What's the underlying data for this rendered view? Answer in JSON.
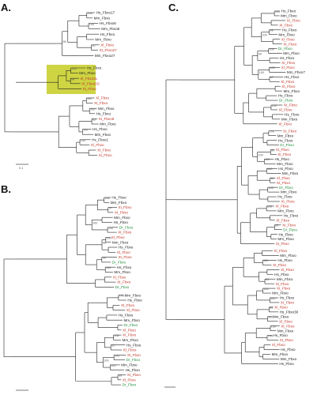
{
  "figure": {
    "labels": {
      "a": "A.",
      "b": "B.",
      "c": "C."
    },
    "colors": {
      "xenopus_red": "#c0392b",
      "zebrafish_green": "#1e8f3a",
      "human_mouse": "#222222",
      "highlight": "#c9cf2e",
      "branch": "#222222",
      "support": "#555555"
    },
    "panel_a": {
      "tips_top": [
        "Hs_Fbxo17",
        "Mm_Fbxo",
        "Hs_Fbxo6",
        "Mm_Fbxo6",
        "Hs_Fbxo",
        "Mm_Fbxo",
        "Xl_Fbxo",
        "Xt_Fbxo27",
        "Mm_Fbxo27"
      ],
      "highlight_tips": [
        "Hs_Fbxo",
        "Mm_Fbxo",
        "Xl_Fbxo2L",
        "Xl_Fbxo2S",
        "Xt_Fbxo"
      ],
      "tips_bottom": [
        "Xl_Fbxo",
        "Xt_Fbxo",
        "Mm_Fbxo",
        "Hs_Fbxo",
        "Xt_Fbxo6",
        "Mm_Fbxo",
        "Hs_Fbxo",
        "Mm_Fbxo",
        "Hs_Fbxo1",
        "Xl_Fbxo",
        "Xt_Fbxo",
        "Xl_Fbxo"
      ],
      "support": [
        "100",
        "100",
        "92",
        "96",
        "100",
        "99",
        "100",
        "100",
        "83",
        "100",
        "100"
      ]
    },
    "panel_b": {
      "tips": [
        "Hs_Fbxo",
        "Mm_Fbxo",
        "Xl_Fbxo",
        "Xt_Fbxo",
        "Mm_Fbxo",
        "Hs_Fbxo",
        "Dr_Fbxo",
        "Xt_Fbxo",
        "Xl_Fbxo",
        "Mm_Fbxo",
        "Hs_Fbxo",
        "Xl_Fbxo",
        "Xt_Fbxo",
        "Dr_Fbxo",
        "Hs_Fbxo",
        "Mm_Fbxo",
        "Xl_Fbxo",
        "Xt_Fbxo",
        "Dr_Fbxo",
        "Mm_Fbxo",
        "Hs_Fbxo",
        "Xt_Fbxo",
        "Xl_Fbxo",
        "Hs_Fbxo",
        "Mm_Fbxo",
        "Dr_Fbxo",
        "Xl_Fbxo",
        "Xt_Fbxo",
        "Mm_Fbxo",
        "Hs_Fbxo",
        "Xl_Fbxo",
        "Xt_Fbxo",
        "Dr_Fbxo",
        "Mm_Fbxo",
        "Hs_Fbxo",
        "Xt_Fbxo",
        "Xl_Fbxo",
        "Dr_Fbxo"
      ],
      "support": [
        "100",
        "97",
        "100",
        "100",
        "99",
        "100",
        "100",
        "98",
        "100",
        "100",
        "91",
        "100",
        "100",
        "99",
        "100"
      ]
    },
    "panel_c": {
      "tips": [
        "Hs_Fbxo",
        "Mm_Fbxo",
        "Xt_Fbxo",
        "Xl_Fbxo",
        "Hs_Fbxo",
        "Mm_Fbxo",
        "Xl_Fbxo",
        "Xt_Fbxo",
        "Dr_Fbxo",
        "Mm_Fbxo",
        "Hs_Fbxo",
        "Xt_Fbxo",
        "Xl_Fbxo",
        "Mm_Fbxo7",
        "Hs_Fbxo",
        "Xl_Fbxo",
        "Xt_Fbxo",
        "Mm_Fbxo",
        "Hs_Fbxo",
        "Dr_Fbxo",
        "Xt_Fbxo",
        "Xl_Fbxo",
        "Hs_Fbxo",
        "Mm_Fbxo",
        "Xl_Fbxo",
        "Xt_Fbxo",
        "Mm_Fbxo",
        "Hs_Fbxo",
        "Dr_Fbxo",
        "Xt_Fbxo",
        "Xl_Fbxo",
        "Hs_Fbxo",
        "Mm_Fbxo",
        "Hs_Fbxo",
        "Mm_Fbxo",
        "Xl_Fbxo",
        "Xt_Fbxo",
        "Dr_Fbxo",
        "Mm_Fbxo",
        "Hs_Fbxo",
        "Xt_Fbxo",
        "Xl_Fbxo",
        "Mm_Fbxo",
        "Hs_Fbxo",
        "Xl_Fbxo",
        "Xt_Fbxo",
        "Dr_Fbxo",
        "Hs_Fbxo",
        "Mm_Fbxo",
        "Xt_Fbxo",
        "Xl_Fbxo",
        "Mm_Fbxo",
        "Hs_Fbxo",
        "Xt_Fbxo",
        "Xl_Fbxo",
        "Hs_Fbxo",
        "Mm_Fbxo",
        "Xl_Fbxo",
        "Xt_Fbxo",
        "Mm_Fbxo",
        "Hs_Fbxo",
        "Xt_Fbxo",
        "Xl_Fbxo",
        "Hs_Fbxo30",
        "Mm_Fbxo",
        "Xl_Fbxo",
        "Xt_Fbxo",
        "Mm_Fbxo",
        "Hs_Fbxo",
        "Xt_Fbxo",
        "Xl_Fbxo",
        "Hs_Fbxo",
        "Mm_Fbxo",
        "Mm_Fbxo",
        "Hs_Fbxo"
      ],
      "support": [
        "100",
        "98",
        "100",
        "100",
        "97",
        "100",
        "100",
        "99",
        "100",
        "100",
        "90",
        "100",
        "100",
        "96",
        "100",
        "100",
        "99",
        "100",
        "100",
        "95",
        "100",
        "100",
        "88",
        "100",
        "100",
        "100"
      ]
    }
  }
}
